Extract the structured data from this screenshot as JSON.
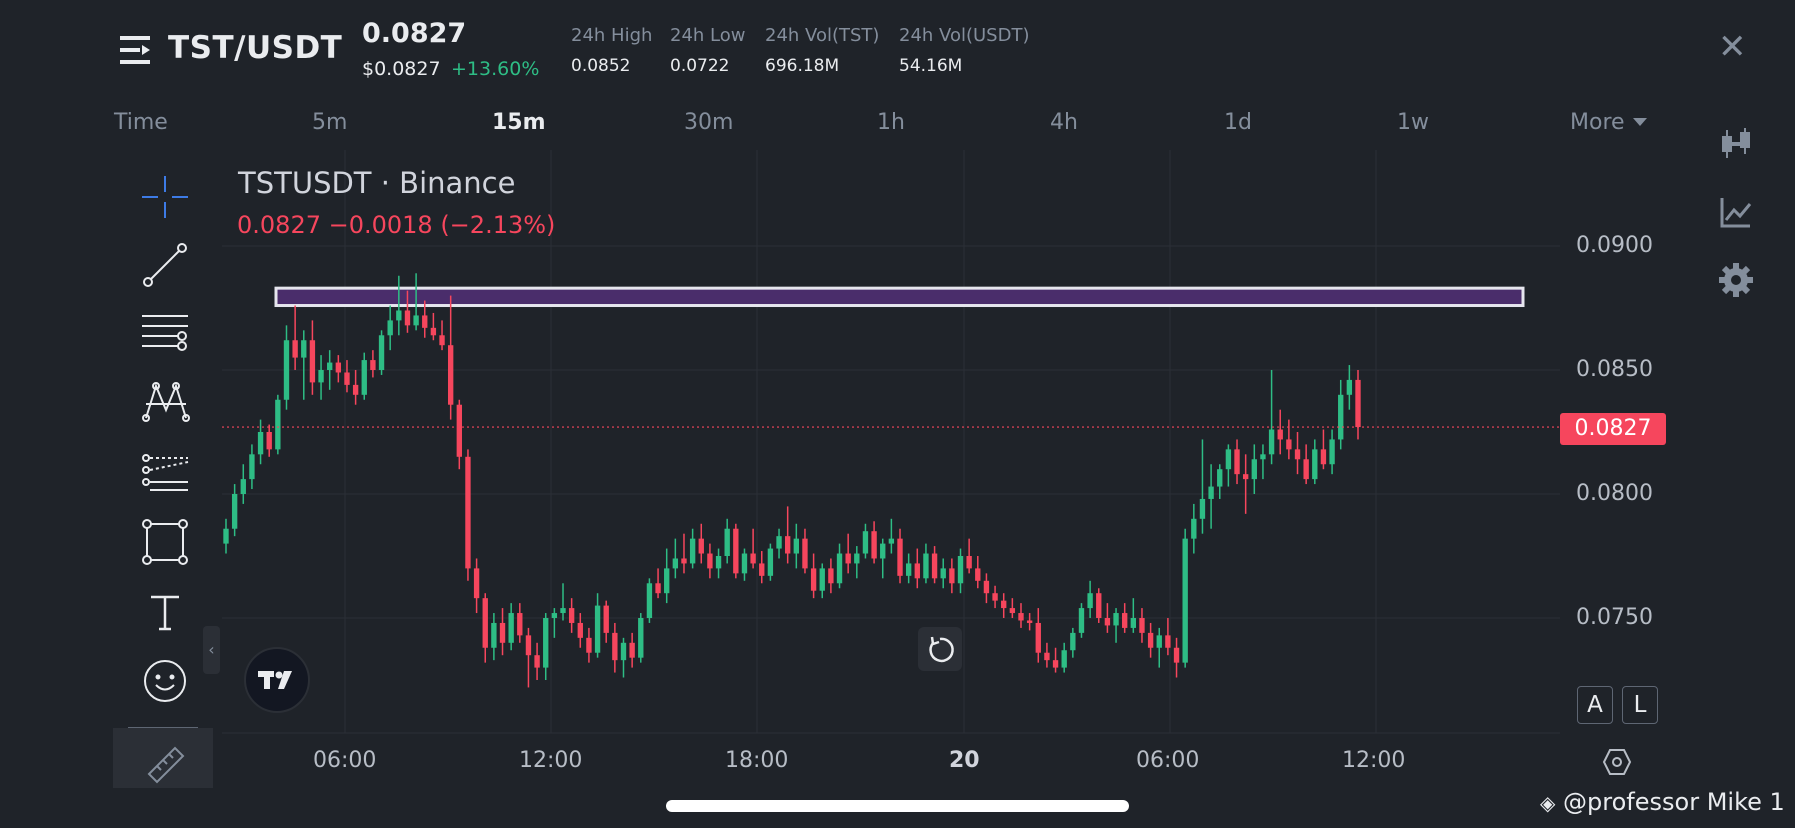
{
  "header": {
    "pair": "TST/USDT",
    "last_price": "0.0827",
    "usd_price": "$0.0827",
    "change_24h": "+13.60%",
    "stats": [
      {
        "label": "24h High",
        "value": "0.0852"
      },
      {
        "label": "24h Low",
        "value": "0.0722"
      },
      {
        "label": "24h Vol(TST)",
        "value": "696.18M"
      },
      {
        "label": "24h Vol(USDT)",
        "value": "54.16M"
      }
    ]
  },
  "timeframes": {
    "label": "Time",
    "items": [
      "5m",
      "15m",
      "30m",
      "1h",
      "4h",
      "1d",
      "1w"
    ],
    "active": "15m",
    "more_label": "More"
  },
  "legend": {
    "symbol": "TSTUSDT · Binance",
    "values": "0.0827  −0.0018 (−2.13%)"
  },
  "current_price_tag": "0.0827",
  "buttons": {
    "auto": "A",
    "log": "L"
  },
  "watermark": "@professor Mike 1",
  "colors": {
    "up": "#2ebd85",
    "down": "#f6465d",
    "zone": "#4a2d6b",
    "background": "#1f2329"
  },
  "icons": [
    "menu-icon",
    "close-icon",
    "crosshair-icon",
    "trendline-icon",
    "horizontal-lines-icon",
    "pattern-icon",
    "prediction-icon",
    "rectangle-icon",
    "text-icon",
    "emoji-icon",
    "ruler-icon",
    "candle-settings-icon",
    "indicator-icon",
    "gear-icon",
    "reset-icon",
    "hexagon-settings-icon"
  ],
  "chart_data": {
    "type": "candlestick",
    "symbol": "TSTUSDT",
    "interval": "15m",
    "y_ticks": [
      "0.0900",
      "0.0850",
      "0.0800",
      "0.0750"
    ],
    "x_ticks": [
      "06:00",
      "12:00",
      "18:00",
      "20",
      "06:00",
      "12:00"
    ],
    "ylim": [
      0.0705,
      0.092
    ],
    "current_price": 0.0827,
    "resistance_zone": [
      0.0876,
      0.0883
    ],
    "candles": [
      [
        0.078,
        0.079,
        0.0776,
        0.0786
      ],
      [
        0.0786,
        0.0804,
        0.0783,
        0.08
      ],
      [
        0.08,
        0.0812,
        0.0796,
        0.0806
      ],
      [
        0.0806,
        0.082,
        0.0802,
        0.0816
      ],
      [
        0.0816,
        0.083,
        0.0812,
        0.0825
      ],
      [
        0.0825,
        0.0828,
        0.0815,
        0.0818
      ],
      [
        0.0818,
        0.084,
        0.0816,
        0.0838
      ],
      [
        0.0838,
        0.0868,
        0.0834,
        0.0862
      ],
      [
        0.0862,
        0.0876,
        0.085,
        0.0855
      ],
      [
        0.0855,
        0.0866,
        0.0838,
        0.0862
      ],
      [
        0.0862,
        0.087,
        0.084,
        0.0845
      ],
      [
        0.0845,
        0.0856,
        0.0838,
        0.085
      ],
      [
        0.085,
        0.0858,
        0.0842,
        0.0853
      ],
      [
        0.0853,
        0.0856,
        0.0845,
        0.0849
      ],
      [
        0.0849,
        0.0854,
        0.0841,
        0.0844
      ],
      [
        0.0844,
        0.085,
        0.0836,
        0.084
      ],
      [
        0.084,
        0.0857,
        0.0838,
        0.0854
      ],
      [
        0.0854,
        0.0858,
        0.0847,
        0.085
      ],
      [
        0.085,
        0.0866,
        0.0848,
        0.0864
      ],
      [
        0.0864,
        0.0876,
        0.0858,
        0.087
      ],
      [
        0.087,
        0.0888,
        0.0864,
        0.0874
      ],
      [
        0.0874,
        0.0882,
        0.0865,
        0.0868
      ],
      [
        0.0868,
        0.0889,
        0.0866,
        0.0872
      ],
      [
        0.0872,
        0.0878,
        0.0863,
        0.0867
      ],
      [
        0.0867,
        0.0873,
        0.0862,
        0.0864
      ],
      [
        0.0864,
        0.087,
        0.0858,
        0.086
      ],
      [
        0.086,
        0.088,
        0.083,
        0.0836
      ],
      [
        0.0836,
        0.0838,
        0.081,
        0.0815
      ],
      [
        0.0815,
        0.0818,
        0.0765,
        0.077
      ],
      [
        0.077,
        0.0774,
        0.0752,
        0.0758
      ],
      [
        0.0758,
        0.076,
        0.0732,
        0.0738
      ],
      [
        0.0738,
        0.0752,
        0.0733,
        0.0748
      ],
      [
        0.0748,
        0.0754,
        0.0735,
        0.074
      ],
      [
        0.074,
        0.0756,
        0.0737,
        0.0752
      ],
      [
        0.0752,
        0.0756,
        0.074,
        0.0743
      ],
      [
        0.0743,
        0.0746,
        0.0722,
        0.0735
      ],
      [
        0.0735,
        0.074,
        0.0725,
        0.073
      ],
      [
        0.073,
        0.0752,
        0.0725,
        0.075
      ],
      [
        0.075,
        0.0754,
        0.0742,
        0.0752
      ],
      [
        0.0752,
        0.0764,
        0.0749,
        0.0754
      ],
      [
        0.0754,
        0.0758,
        0.0744,
        0.0748
      ],
      [
        0.0748,
        0.0752,
        0.0738,
        0.0742
      ],
      [
        0.0742,
        0.0746,
        0.0732,
        0.0736
      ],
      [
        0.0736,
        0.076,
        0.0734,
        0.0755
      ],
      [
        0.0755,
        0.0757,
        0.074,
        0.0744
      ],
      [
        0.0744,
        0.0748,
        0.0728,
        0.0733
      ],
      [
        0.0733,
        0.0742,
        0.0726,
        0.074
      ],
      [
        0.074,
        0.0744,
        0.073,
        0.0734
      ],
      [
        0.0734,
        0.0752,
        0.0732,
        0.075
      ],
      [
        0.075,
        0.0766,
        0.0748,
        0.0764
      ],
      [
        0.0764,
        0.077,
        0.0758,
        0.076
      ],
      [
        0.076,
        0.0778,
        0.0756,
        0.077
      ],
      [
        0.077,
        0.0782,
        0.0766,
        0.0774
      ],
      [
        0.0774,
        0.0784,
        0.0768,
        0.0772
      ],
      [
        0.0772,
        0.0786,
        0.077,
        0.0782
      ],
      [
        0.0782,
        0.0788,
        0.0772,
        0.0776
      ],
      [
        0.0776,
        0.078,
        0.0766,
        0.077
      ],
      [
        0.077,
        0.0778,
        0.0766,
        0.0775
      ],
      [
        0.0775,
        0.079,
        0.0772,
        0.0786
      ],
      [
        0.0786,
        0.0788,
        0.0766,
        0.0768
      ],
      [
        0.0768,
        0.0778,
        0.0765,
        0.0776
      ],
      [
        0.0776,
        0.0786,
        0.077,
        0.0772
      ],
      [
        0.0772,
        0.0777,
        0.0764,
        0.0767
      ],
      [
        0.0767,
        0.078,
        0.0765,
        0.0778
      ],
      [
        0.0778,
        0.0786,
        0.0774,
        0.0783
      ],
      [
        0.0783,
        0.0795,
        0.0772,
        0.0776
      ],
      [
        0.0776,
        0.0788,
        0.077,
        0.0782
      ],
      [
        0.0782,
        0.0786,
        0.0768,
        0.077
      ],
      [
        0.077,
        0.0776,
        0.0758,
        0.0761
      ],
      [
        0.0761,
        0.0772,
        0.0758,
        0.077
      ],
      [
        0.077,
        0.0774,
        0.076,
        0.0764
      ],
      [
        0.0764,
        0.078,
        0.0762,
        0.0776
      ],
      [
        0.0776,
        0.0784,
        0.0768,
        0.0772
      ],
      [
        0.0772,
        0.0779,
        0.0766,
        0.0776
      ],
      [
        0.0776,
        0.0788,
        0.0774,
        0.0785
      ],
      [
        0.0785,
        0.0789,
        0.0772,
        0.0774
      ],
      [
        0.0774,
        0.0782,
        0.0766,
        0.078
      ],
      [
        0.078,
        0.079,
        0.0776,
        0.0782
      ],
      [
        0.0782,
        0.0786,
        0.0764,
        0.0767
      ],
      [
        0.0767,
        0.0776,
        0.0764,
        0.0772
      ],
      [
        0.0772,
        0.0778,
        0.0762,
        0.0766
      ],
      [
        0.0766,
        0.078,
        0.0764,
        0.0776
      ],
      [
        0.0776,
        0.0779,
        0.0764,
        0.0766
      ],
      [
        0.0766,
        0.0774,
        0.0762,
        0.077
      ],
      [
        0.077,
        0.0774,
        0.076,
        0.0764
      ],
      [
        0.0764,
        0.0778,
        0.076,
        0.0775
      ],
      [
        0.0775,
        0.0782,
        0.0768,
        0.077
      ],
      [
        0.077,
        0.0775,
        0.0762,
        0.0765
      ],
      [
        0.0765,
        0.0768,
        0.0756,
        0.076
      ],
      [
        0.076,
        0.0763,
        0.0754,
        0.0757
      ],
      [
        0.0757,
        0.076,
        0.075,
        0.0754
      ],
      [
        0.0754,
        0.0758,
        0.075,
        0.0752
      ],
      [
        0.0752,
        0.0756,
        0.0746,
        0.0749
      ],
      [
        0.0749,
        0.0752,
        0.0745,
        0.0748
      ],
      [
        0.0748,
        0.0754,
        0.0732,
        0.0736
      ],
      [
        0.0736,
        0.074,
        0.073,
        0.0733
      ],
      [
        0.0733,
        0.0738,
        0.0728,
        0.073
      ],
      [
        0.073,
        0.074,
        0.0728,
        0.0737
      ],
      [
        0.0737,
        0.0746,
        0.0734,
        0.0744
      ],
      [
        0.0744,
        0.0756,
        0.0742,
        0.0754
      ],
      [
        0.0754,
        0.0765,
        0.075,
        0.076
      ],
      [
        0.076,
        0.0762,
        0.0748,
        0.075
      ],
      [
        0.075,
        0.0756,
        0.0744,
        0.0747
      ],
      [
        0.0747,
        0.0754,
        0.074,
        0.0752
      ],
      [
        0.0752,
        0.0756,
        0.0744,
        0.0746
      ],
      [
        0.0746,
        0.0758,
        0.0744,
        0.075
      ],
      [
        0.075,
        0.0754,
        0.074,
        0.0744
      ],
      [
        0.0744,
        0.0748,
        0.0734,
        0.0738
      ],
      [
        0.0738,
        0.0746,
        0.073,
        0.0743
      ],
      [
        0.0743,
        0.075,
        0.0735,
        0.0738
      ],
      [
        0.0738,
        0.0742,
        0.0726,
        0.0732
      ],
      [
        0.0732,
        0.0786,
        0.073,
        0.0782
      ],
      [
        0.0782,
        0.0796,
        0.0776,
        0.079
      ],
      [
        0.079,
        0.0822,
        0.0784,
        0.0798
      ],
      [
        0.0798,
        0.0812,
        0.0786,
        0.0803
      ],
      [
        0.0803,
        0.0812,
        0.0798,
        0.081
      ],
      [
        0.081,
        0.082,
        0.0803,
        0.0818
      ],
      [
        0.0818,
        0.0822,
        0.0804,
        0.0808
      ],
      [
        0.0808,
        0.0816,
        0.0792,
        0.0806
      ],
      [
        0.0806,
        0.082,
        0.08,
        0.0814
      ],
      [
        0.0814,
        0.082,
        0.0806,
        0.0816
      ],
      [
        0.0816,
        0.085,
        0.0812,
        0.0826
      ],
      [
        0.0826,
        0.0834,
        0.0816,
        0.0822
      ],
      [
        0.0822,
        0.083,
        0.0814,
        0.0818
      ],
      [
        0.0818,
        0.0825,
        0.0808,
        0.0814
      ],
      [
        0.0814,
        0.082,
        0.0804,
        0.0806
      ],
      [
        0.0806,
        0.0822,
        0.0804,
        0.0818
      ],
      [
        0.0818,
        0.0826,
        0.081,
        0.0812
      ],
      [
        0.0812,
        0.0826,
        0.0808,
        0.0822
      ],
      [
        0.0822,
        0.0846,
        0.0818,
        0.084
      ],
      [
        0.084,
        0.0852,
        0.0834,
        0.0846
      ],
      [
        0.0846,
        0.085,
        0.0822,
        0.0827
      ]
    ]
  }
}
